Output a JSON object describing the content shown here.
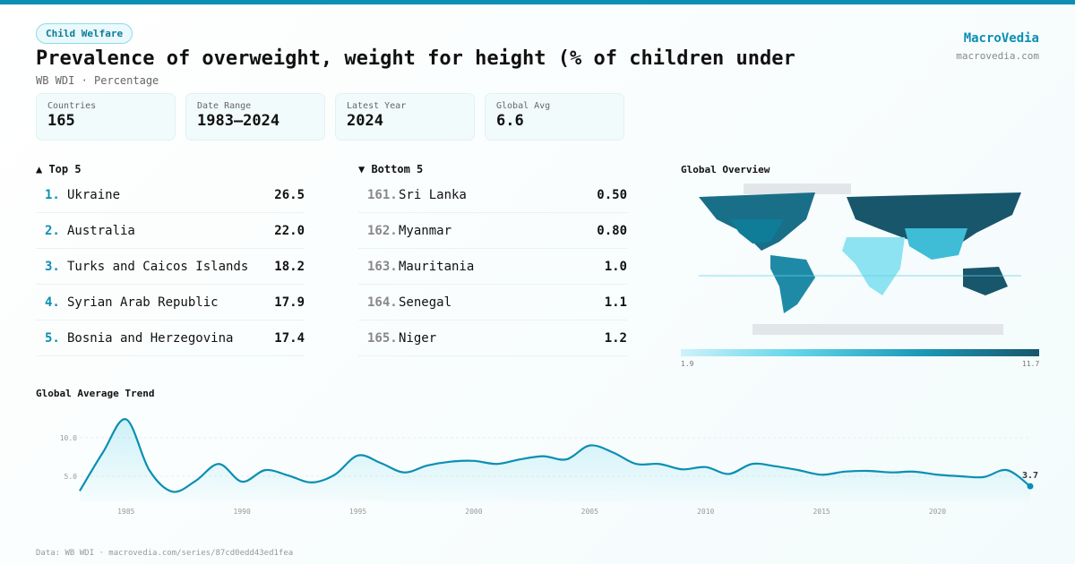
{
  "header": {
    "tag": "Child Welfare",
    "title": "Prevalence of overweight, weight for height (% of children under",
    "subtitle": "WB WDI · Percentage",
    "brand": "MacroVedia",
    "brand_url": "macrovedia.com"
  },
  "cards": [
    {
      "label": "Countries",
      "value": "165"
    },
    {
      "label": "Date Range",
      "value": "1983–2024"
    },
    {
      "label": "Latest Year",
      "value": "2024"
    },
    {
      "label": "Global Avg",
      "value": "6.6"
    }
  ],
  "top5": {
    "title": "▲ Top 5",
    "items": [
      {
        "rank": "1.",
        "name": "Ukraine",
        "value": "26.5"
      },
      {
        "rank": "2.",
        "name": "Australia",
        "value": "22.0"
      },
      {
        "rank": "3.",
        "name": "Turks and Caicos Islands",
        "value": "18.2"
      },
      {
        "rank": "4.",
        "name": "Syrian Arab Republic",
        "value": "17.9"
      },
      {
        "rank": "5.",
        "name": "Bosnia and Herzegovina",
        "value": "17.4"
      }
    ]
  },
  "bottom5": {
    "title": "▼ Bottom 5",
    "items": [
      {
        "rank": "161.",
        "name": "Sri Lanka",
        "value": "0.50"
      },
      {
        "rank": "162.",
        "name": "Myanmar",
        "value": "0.80"
      },
      {
        "rank": "163.",
        "name": "Mauritania",
        "value": "1.0"
      },
      {
        "rank": "164.",
        "name": "Senegal",
        "value": "1.1"
      },
      {
        "rank": "165.",
        "name": "Niger",
        "value": "1.2"
      }
    ]
  },
  "map": {
    "title": "Global Overview",
    "legend_min": "1.9",
    "legend_max": "11.7",
    "colors": [
      "#cdf3fa",
      "#5fd3e8",
      "#1a9ab8",
      "#18566c"
    ]
  },
  "chart_data": {
    "type": "area",
    "title": "Global Average Trend",
    "x": [
      1983,
      1984,
      1985,
      1986,
      1987,
      1988,
      1989,
      1990,
      1991,
      1992,
      1993,
      1994,
      1995,
      1996,
      1997,
      1998,
      1999,
      2000,
      2001,
      2002,
      2003,
      2004,
      2005,
      2006,
      2007,
      2008,
      2009,
      2010,
      2011,
      2012,
      2013,
      2014,
      2015,
      2016,
      2017,
      2018,
      2019,
      2020,
      2021,
      2022,
      2023,
      2024
    ],
    "values": [
      3.1,
      8.1,
      12.4,
      5.8,
      3.0,
      4.4,
      6.6,
      4.3,
      5.8,
      5.1,
      4.2,
      5.2,
      7.7,
      6.7,
      5.5,
      6.4,
      6.9,
      7.0,
      6.6,
      7.2,
      7.6,
      7.2,
      9.0,
      8.1,
      6.6,
      6.6,
      5.9,
      6.2,
      5.3,
      6.6,
      6.3,
      5.8,
      5.2,
      5.6,
      5.7,
      5.5,
      5.6,
      5.2,
      5.0,
      4.9,
      5.8,
      3.7
    ],
    "y_ticks": [
      "5.0",
      "10.0"
    ],
    "x_ticks": [
      "1985",
      "1990",
      "1995",
      "2000",
      "2005",
      "2010",
      "2015",
      "2020"
    ],
    "last_label": "3.7",
    "color": "#0b8fb3",
    "grid": true
  },
  "footer": "Data: WB WDI · macrovedia.com/series/87cd0edd43ed1fea"
}
